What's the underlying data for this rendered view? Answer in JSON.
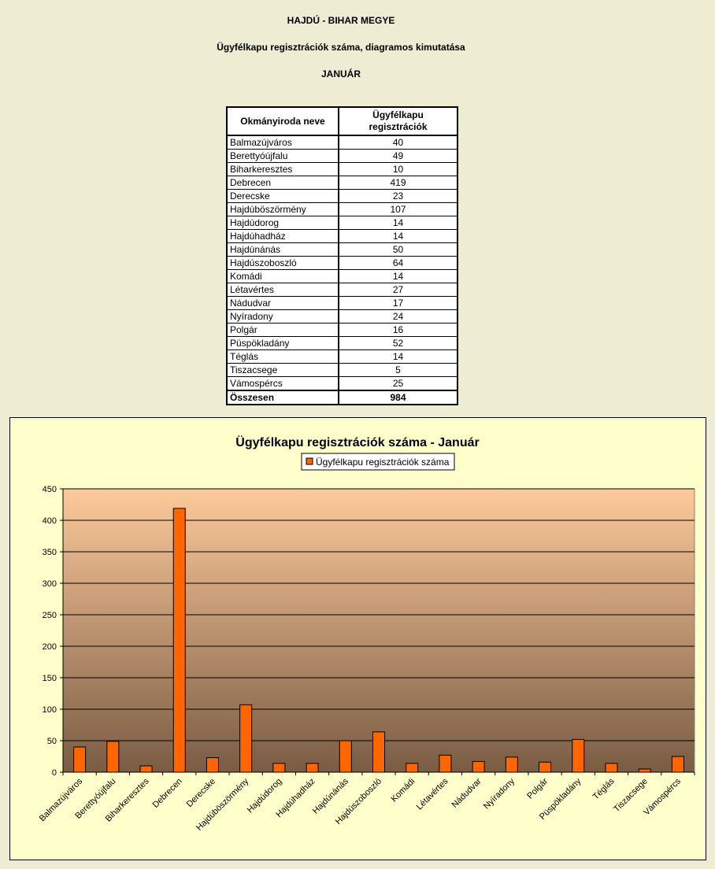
{
  "header": {
    "line1": "HAJDÚ - BIHAR MEGYE",
    "line2": "Ügyfélkapu regisztrációk száma, diagramos kimutatása",
    "line3": "JANUÁR"
  },
  "table": {
    "col1": "Okmányiroda neve",
    "col2_line1": "Ügyfélkapu",
    "col2_line2": "regisztrációk",
    "rows": [
      {
        "name": "Balmazújváros",
        "value": "40"
      },
      {
        "name": "Berettyóújfalu",
        "value": "49"
      },
      {
        "name": "Biharkeresztes",
        "value": "10"
      },
      {
        "name": "Debrecen",
        "value": "419"
      },
      {
        "name": "Derecske",
        "value": "23"
      },
      {
        "name": "Hajdúböszörmény",
        "value": "107"
      },
      {
        "name": "Hajdúdorog",
        "value": "14"
      },
      {
        "name": "Hajdúhadház",
        "value": "14"
      },
      {
        "name": "Hajdúnánás",
        "value": "50"
      },
      {
        "name": "Hajdúszoboszló",
        "value": "64"
      },
      {
        "name": "Komádi",
        "value": "14"
      },
      {
        "name": "Létavértes",
        "value": "27"
      },
      {
        "name": "Nádudvar",
        "value": "17"
      },
      {
        "name": "Nyíradony",
        "value": "24"
      },
      {
        "name": "Polgár",
        "value": "16"
      },
      {
        "name": "Püspökladány",
        "value": "52"
      },
      {
        "name": "Téglás",
        "value": "14"
      },
      {
        "name": "Tiszacsege",
        "value": "5"
      },
      {
        "name": "Vámospércs",
        "value": "25"
      }
    ],
    "total_label": "Összesen",
    "total_value": "984"
  },
  "colors": {
    "bar": "#ff6600",
    "plot_top": "#fcc99a",
    "plot_bottom": "#7a5c44",
    "chart_bg": "#ffffcc"
  },
  "chart_data": {
    "type": "bar",
    "title": "Ügyfélkapu regisztrációk száma - Január",
    "legend_position": "top",
    "grid": true,
    "ylim": [
      0,
      450
    ],
    "yticks": [
      0,
      50,
      100,
      150,
      200,
      250,
      300,
      350,
      400,
      450
    ],
    "categories": [
      "Balmazújváros",
      "Berettyóújfalu",
      "Biharkeresztes",
      "Debrecen",
      "Derecske",
      "Hajdúböszörmény",
      "Hajdúdorog",
      "Hajdúhadház",
      "Hajdúnánás",
      "Hajdúszoboszló",
      "Komádi",
      "Létavértes",
      "Nádudvar",
      "Nyíradony",
      "Polgár",
      "Püspökladány",
      "Téglás",
      "Tiszacsege",
      "Vámospércs"
    ],
    "series": [
      {
        "name": "Ügyfélkapu regisztrációk száma",
        "values": [
          40,
          49,
          10,
          419,
          23,
          107,
          14,
          14,
          50,
          64,
          14,
          27,
          17,
          24,
          16,
          52,
          14,
          5,
          25
        ]
      }
    ]
  }
}
